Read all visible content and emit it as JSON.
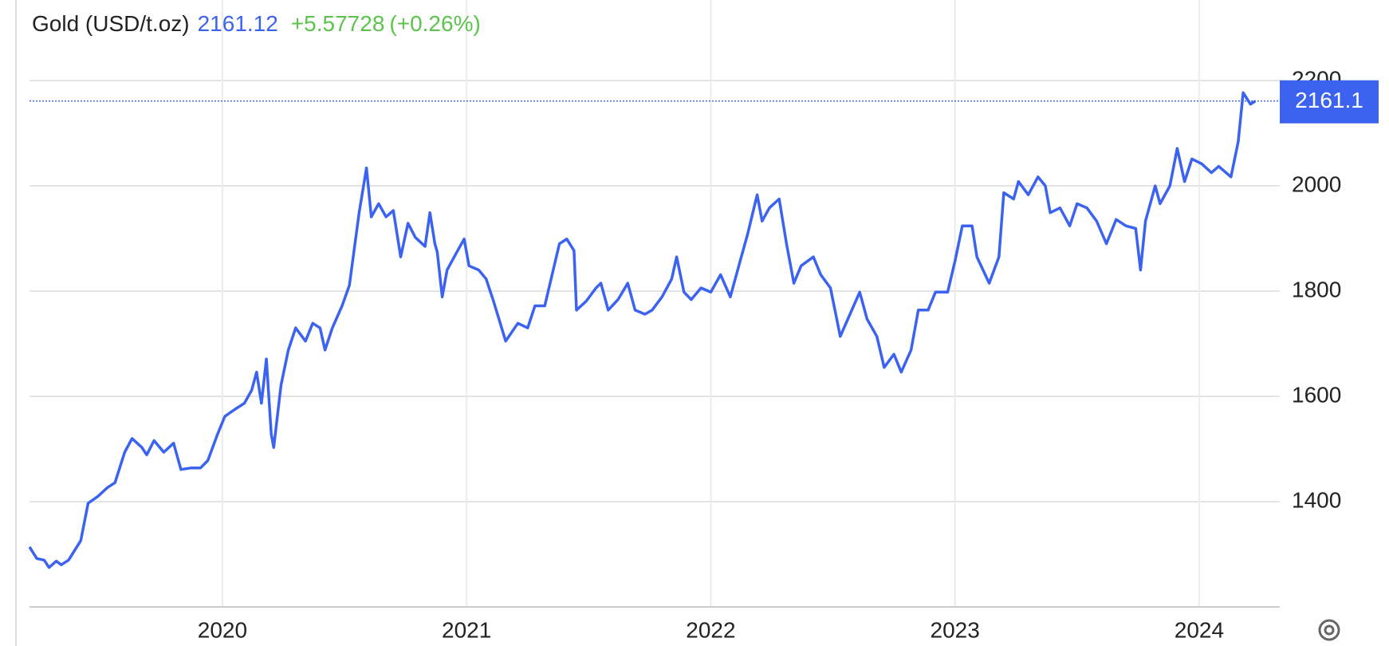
{
  "chart_data": {
    "type": "line",
    "title": "Gold (USD/t.oz)",
    "price": "2161.12",
    "change": "+5.57728",
    "change_pct": "(+0.26%)",
    "price_tag": "2161.1",
    "color": "#3b63f0",
    "x": [
      2019.21,
      2019.24,
      2019.27,
      2019.29,
      2019.32,
      2019.34,
      2019.37,
      2019.42,
      2019.45,
      2019.49,
      2019.53,
      2019.56,
      2019.6,
      2019.63,
      2019.67,
      2019.69,
      2019.72,
      2019.76,
      2019.8,
      2019.83,
      2019.87,
      2019.91,
      2019.94,
      2019.98,
      2020.01,
      2020.05,
      2020.09,
      2020.12,
      2020.14,
      2020.16,
      2020.18,
      2020.2,
      2020.21,
      2020.24,
      2020.27,
      2020.3,
      2020.34,
      2020.37,
      2020.4,
      2020.42,
      2020.45,
      2020.49,
      2020.52,
      2020.56,
      2020.59,
      2020.61,
      2020.64,
      2020.67,
      2020.7,
      2020.73,
      2020.76,
      2020.79,
      2020.83,
      2020.85,
      2020.87,
      2020.88,
      2020.9,
      2020.92,
      2020.96,
      2020.99,
      2021.01,
      2021.05,
      2021.08,
      2021.11,
      2021.16,
      2021.21,
      2021.25,
      2021.28,
      2021.32,
      2021.35,
      2021.38,
      2021.41,
      2021.44,
      2021.45,
      2021.49,
      2021.53,
      2021.55,
      2021.58,
      2021.62,
      2021.66,
      2021.69,
      2021.73,
      2021.76,
      2021.8,
      2021.84,
      2021.86,
      2021.89,
      2021.92,
      2021.96,
      2022.0,
      2022.04,
      2022.08,
      2022.12,
      2022.15,
      2022.19,
      2022.21,
      2022.24,
      2022.28,
      2022.31,
      2022.34,
      2022.37,
      2022.42,
      2022.45,
      2022.49,
      2022.53,
      2022.57,
      2022.61,
      2022.64,
      2022.68,
      2022.71,
      2022.75,
      2022.78,
      2022.82,
      2022.85,
      2022.89,
      2022.92,
      2022.97,
      2023.0,
      2023.03,
      2023.07,
      2023.09,
      2023.14,
      2023.18,
      2023.2,
      2023.24,
      2023.26,
      2023.3,
      2023.34,
      2023.37,
      2023.39,
      2023.43,
      2023.47,
      2023.5,
      2023.54,
      2023.58,
      2023.62,
      2023.66,
      2023.7,
      2023.74,
      2023.76,
      2023.78,
      2023.82,
      2023.84,
      2023.88,
      2023.91,
      2023.94,
      2023.97,
      2024.01,
      2024.05,
      2024.08,
      2024.13,
      2024.16,
      2024.18,
      2024.21,
      2024.23
    ],
    "values": [
      1314,
      1292,
      1289,
      1275,
      1287,
      1280,
      1289,
      1326,
      1397,
      1410,
      1427,
      1436,
      1494,
      1520,
      1503,
      1489,
      1516,
      1494,
      1511,
      1461,
      1464,
      1464,
      1478,
      1528,
      1562,
      1575,
      1587,
      1612,
      1646,
      1587,
      1671,
      1528,
      1503,
      1621,
      1688,
      1730,
      1705,
      1739,
      1730,
      1688,
      1730,
      1772,
      1811,
      1949,
      2034,
      1941,
      1966,
      1941,
      1953,
      1865,
      1929,
      1902,
      1885,
      1949,
      1890,
      1874,
      1789,
      1840,
      1874,
      1899,
      1848,
      1840,
      1823,
      1781,
      1705,
      1739,
      1730,
      1772,
      1772,
      1831,
      1890,
      1899,
      1877,
      1764,
      1781,
      1806,
      1815,
      1764,
      1784,
      1815,
      1764,
      1756,
      1764,
      1789,
      1823,
      1865,
      1798,
      1784,
      1806,
      1798,
      1831,
      1789,
      1857,
      1907,
      1983,
      1933,
      1958,
      1975,
      1890,
      1815,
      1848,
      1865,
      1831,
      1806,
      1714,
      1756,
      1798,
      1747,
      1714,
      1655,
      1680,
      1646,
      1688,
      1764,
      1764,
      1798,
      1798,
      1857,
      1924,
      1924,
      1865,
      1815,
      1865,
      1987,
      1975,
      2008,
      1983,
      2017,
      2000,
      1949,
      1958,
      1924,
      1966,
      1958,
      1933,
      1890,
      1936,
      1924,
      1919,
      1840,
      1933,
      2000,
      1966,
      2000,
      2071,
      2008,
      2051,
      2042,
      2025,
      2037,
      2017,
      2084,
      2177,
      2155,
      2161.12
    ],
    "xlim": [
      2019.21,
      2024.33
    ],
    "ylim": [
      1200,
      2350
    ],
    "xticks": [
      2020,
      2021,
      2022,
      2023,
      2024
    ],
    "yticks": [
      1400,
      1600,
      1800,
      2000,
      2200
    ],
    "grid": true
  }
}
